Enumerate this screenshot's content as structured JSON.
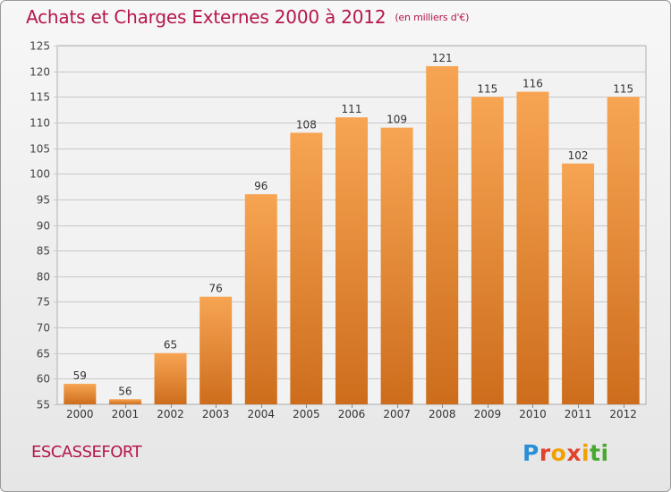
{
  "header": {
    "title": "Achats et Charges Externes 2000 à 2012",
    "unit": "(en milliers d'€)"
  },
  "footer": {
    "city": "ESCASSEFORT",
    "logo_text": "Proxiti"
  },
  "colors": {
    "title": "#b5164d",
    "bar_top": "#f7a553",
    "bar_bottom": "#cd6d1c",
    "logo_letters": [
      "#2a8fd6",
      "#e0432d",
      "#f2a100",
      "#e0432d",
      "#f2a100",
      "#4aa832",
      "#4aa832"
    ]
  },
  "chart_data": {
    "type": "bar",
    "title": "Achats et Charges Externes 2000 à 2012",
    "subtitle": "(en milliers d'€)",
    "xlabel": "",
    "ylabel": "",
    "categories": [
      "2000",
      "2001",
      "2002",
      "2003",
      "2004",
      "2005",
      "2006",
      "2007",
      "2008",
      "2009",
      "2010",
      "2011",
      "2012"
    ],
    "values": [
      59,
      56,
      65,
      76,
      96,
      108,
      111,
      109,
      121,
      115,
      116,
      102,
      115
    ],
    "ylim": [
      55,
      125
    ],
    "yticks": [
      55,
      60,
      65,
      70,
      75,
      80,
      85,
      90,
      95,
      100,
      105,
      110,
      115,
      120,
      125
    ],
    "grid": true,
    "legend": "none"
  }
}
